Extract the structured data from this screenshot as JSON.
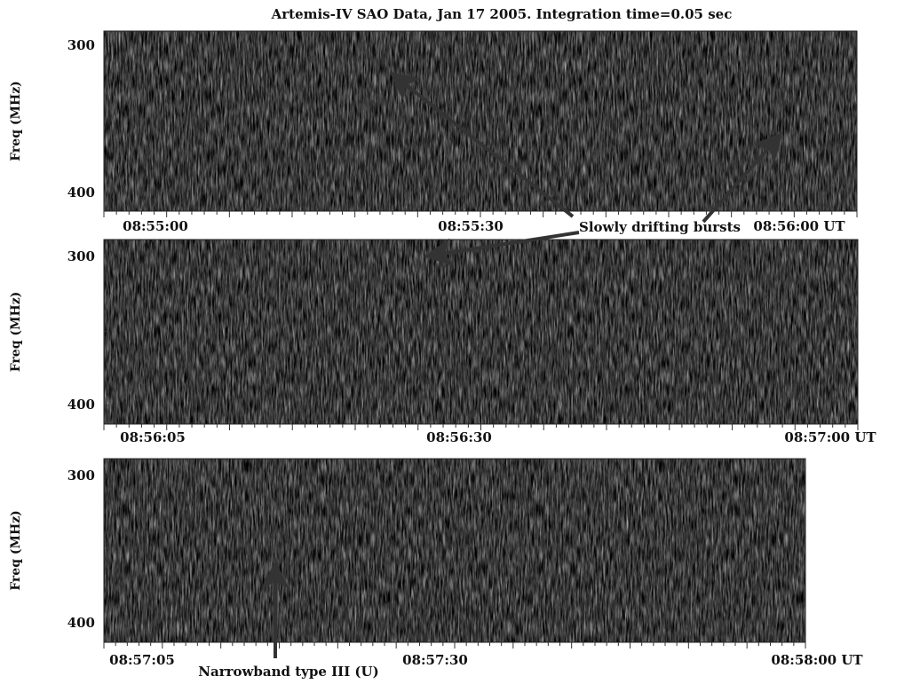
{
  "title": "Artemis-IV SAO Data, Jan 17 2005. Integration time=0.05 sec",
  "panels": [
    {
      "y_axis_label": "Freq (MHz)",
      "y_ticks": [
        "300",
        "400"
      ],
      "x_ticks": [
        "08:55:00",
        "08:55:30",
        "08:56:00 UT"
      ]
    },
    {
      "y_axis_label": "Freq (MHz)",
      "y_ticks": [
        "300",
        "400"
      ],
      "x_ticks": [
        "08:56:05",
        "08:56:30",
        "08:57:00 UT"
      ]
    },
    {
      "y_axis_label": "Freq (MHz)",
      "y_ticks": [
        "300",
        "400"
      ],
      "x_ticks": [
        "08:57:05",
        "08:57:30",
        "08:58:00 UT"
      ]
    }
  ],
  "annotations": [
    "Slowly drifting bursts",
    "Narrowband type III (U)"
  ]
}
